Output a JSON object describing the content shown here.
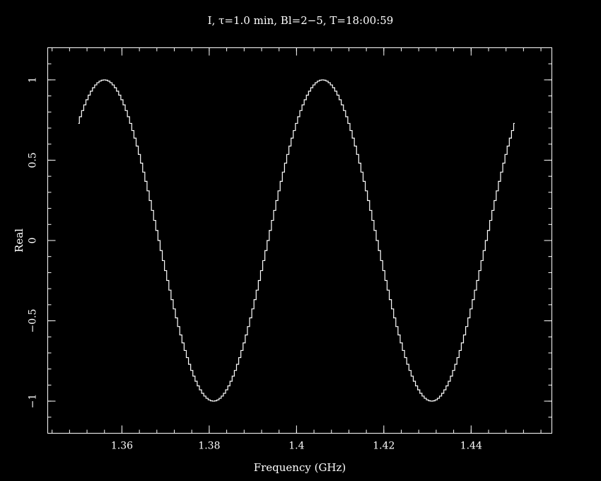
{
  "chart_data": {
    "type": "line",
    "title": "I, τ=1.0 min, Bl=2−5, T=18:00:59",
    "xlabel": "Frequency (GHz)",
    "ylabel": "Real",
    "xlim": [
      1.343,
      1.4585
    ],
    "ylim": [
      -1.2,
      1.2
    ],
    "x_ticks": [
      1.36,
      1.38,
      1.4,
      1.42,
      1.44
    ],
    "x_tick_labels": [
      "1.36",
      "1.38",
      "1.4",
      "1.42",
      "1.44"
    ],
    "y_ticks": [
      1,
      0.5,
      0,
      -0.5,
      -1
    ],
    "y_tick_labels": [
      "1",
      "0.5",
      "0",
      "−0.5",
      "−1"
    ],
    "grid": false,
    "step": true,
    "series": [
      {
        "x_start": 1.35,
        "x_end": 1.45,
        "channel_width": 0.0005,
        "period": 0.05,
        "first_peak_x": 1.356,
        "amplitude": 1.0,
        "x": [
          1.35,
          1.356,
          1.3685,
          1.381,
          1.3935,
          1.406,
          1.4185,
          1.431,
          1.4435,
          1.45
        ],
        "values": [
          0.75,
          1.0,
          0.0,
          -1.0,
          0.0,
          1.0,
          0.0,
          -1.0,
          0.0,
          0.68
        ]
      }
    ]
  }
}
